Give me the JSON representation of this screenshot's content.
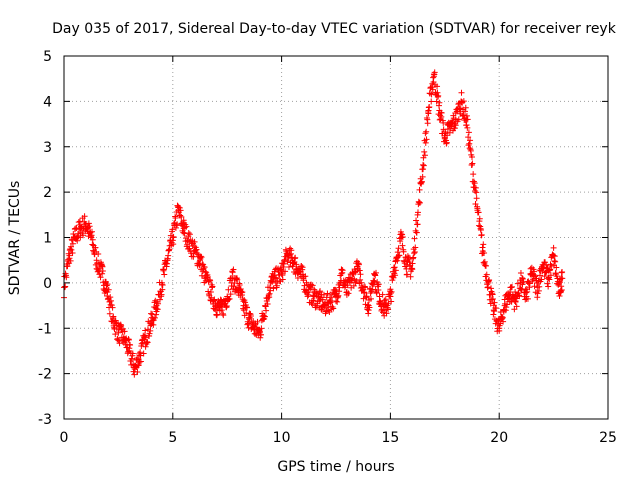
{
  "chart_data": {
    "type": "scatter",
    "title": "Day 035 of 2017, Sidereal Day-to-day VTEC variation (SDTVAR) for receiver reyk",
    "xlabel": "GPS time / hours",
    "ylabel": "SDTVAR / TECUs",
    "xlim": [
      0,
      25
    ],
    "ylim": [
      -3,
      5
    ],
    "xticks": [
      "0",
      "5",
      "10",
      "15",
      "20",
      "25"
    ],
    "yticks": [
      "-3",
      "-2",
      "-1",
      "0",
      "1",
      "2",
      "3",
      "4",
      "5"
    ],
    "grid": true,
    "marker": "+",
    "color": "#ff0000",
    "series": [
      {
        "name": "SDTVAR",
        "x": [
          0.0,
          0.25,
          0.5,
          0.75,
          1.0,
          1.25,
          1.5,
          1.75,
          2.0,
          2.25,
          2.5,
          2.75,
          3.0,
          3.25,
          3.5,
          3.75,
          4.0,
          4.25,
          4.5,
          4.75,
          5.0,
          5.25,
          5.5,
          5.75,
          6.0,
          6.25,
          6.5,
          6.75,
          7.0,
          7.25,
          7.5,
          7.75,
          8.0,
          8.25,
          8.5,
          8.75,
          9.0,
          9.25,
          9.5,
          9.75,
          10.0,
          10.25,
          10.5,
          10.75,
          11.0,
          11.25,
          11.5,
          11.75,
          12.0,
          12.25,
          12.5,
          12.75,
          13.0,
          13.25,
          13.5,
          13.75,
          14.0,
          14.25,
          14.5,
          14.75,
          15.0,
          15.25,
          15.5,
          15.75,
          16.0,
          16.25,
          16.5,
          16.75,
          17.0,
          17.25,
          17.5,
          17.75,
          18.0,
          18.25,
          18.5,
          18.75,
          19.0,
          19.25,
          19.5,
          19.75,
          20.0,
          20.25,
          20.5,
          20.75,
          21.0,
          21.25,
          21.5,
          21.75,
          22.0,
          22.25,
          22.5,
          22.75,
          22.9
        ],
        "y": [
          -0.1,
          0.6,
          1.0,
          1.2,
          1.3,
          1.0,
          0.5,
          0.2,
          -0.2,
          -0.8,
          -1.1,
          -1.2,
          -1.5,
          -1.9,
          -1.6,
          -1.2,
          -0.9,
          -0.5,
          0.0,
          0.5,
          1.0,
          1.6,
          1.2,
          0.9,
          0.7,
          0.5,
          0.1,
          -0.2,
          -0.5,
          -0.6,
          -0.3,
          0.1,
          -0.1,
          -0.5,
          -0.8,
          -1.0,
          -1.1,
          -0.5,
          0.0,
          0.1,
          0.2,
          0.6,
          0.5,
          0.3,
          0.1,
          -0.2,
          -0.3,
          -0.4,
          -0.5,
          -0.4,
          -0.3,
          0.2,
          -0.2,
          0.1,
          0.3,
          -0.1,
          -0.5,
          0.2,
          -0.3,
          -0.6,
          -0.3,
          0.5,
          1.0,
          0.4,
          0.3,
          1.5,
          2.6,
          3.8,
          4.6,
          3.8,
          3.2,
          3.4,
          3.6,
          4.0,
          3.6,
          2.6,
          1.6,
          0.7,
          0.0,
          -0.6,
          -1.0,
          -0.5,
          -0.2,
          -0.4,
          0.0,
          -0.3,
          0.2,
          -0.1,
          0.4,
          0.1,
          0.6,
          -0.2,
          0.1
        ]
      }
    ]
  }
}
